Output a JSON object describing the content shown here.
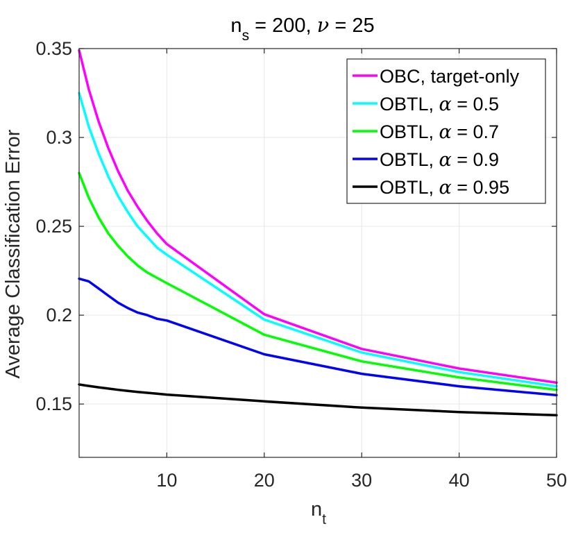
{
  "chart_data": {
    "type": "line",
    "title": {
      "ns_var": "n",
      "ns_sub": "s",
      "ns_rest": " = 200, ",
      "nu_sym": "ν",
      "nu_rest": " = 25"
    },
    "xlabel": {
      "main": "n",
      "sub": "t"
    },
    "ylabel": "Average Classification Error",
    "xlim": [
      1,
      50
    ],
    "ylim": [
      0.12,
      0.35
    ],
    "xticks": [
      10,
      20,
      30,
      40,
      50
    ],
    "xtick_labels": [
      "10",
      "20",
      "30",
      "40",
      "50"
    ],
    "yticks": [
      0.15,
      0.2,
      0.25,
      0.3,
      0.35
    ],
    "ytick_labels": [
      "0.15",
      "0.2",
      "0.25",
      "0.3",
      "0.35"
    ],
    "grid": true,
    "legend_position": "top-right",
    "x": [
      1,
      2,
      3,
      4,
      5,
      6,
      7,
      8,
      9,
      10,
      20,
      30,
      40,
      50
    ],
    "series": [
      {
        "name": "OBC, target-only",
        "legend_label": "OBC, target-only",
        "alpha_text": "",
        "color": "#ff00ff",
        "values": [
          0.349,
          0.327,
          0.309,
          0.294,
          0.281,
          0.27,
          0.261,
          0.253,
          0.246,
          0.24,
          0.2005,
          0.181,
          0.17,
          0.162
        ]
      },
      {
        "name": "OBTL, alpha = 0.5",
        "legend_label": "OBTL, ",
        "alpha_text": " = 0.5",
        "color": "#00ffff",
        "values": [
          0.325,
          0.306,
          0.291,
          0.278,
          0.267,
          0.258,
          0.25,
          0.244,
          0.238,
          0.234,
          0.1975,
          0.179,
          0.168,
          0.16
        ]
      },
      {
        "name": "OBTL, alpha = 0.7",
        "legend_label": "OBTL, ",
        "alpha_text": " = 0.7",
        "color": "#00ff00",
        "values": [
          0.28,
          0.266,
          0.255,
          0.246,
          0.239,
          0.233,
          0.228,
          0.224,
          0.221,
          0.218,
          0.189,
          0.174,
          0.165,
          0.158
        ]
      },
      {
        "name": "OBTL, alpha = 0.9",
        "legend_label": "OBTL, ",
        "alpha_text": " = 0.9",
        "color": "#0000ff",
        "values": [
          0.2205,
          0.219,
          0.215,
          0.211,
          0.207,
          0.204,
          0.2015,
          0.2,
          0.198,
          0.197,
          0.178,
          0.167,
          0.16,
          0.155
        ]
      },
      {
        "name": "OBTL, alpha = 0.95",
        "legend_label": "OBTL, ",
        "alpha_text": " = 0.95",
        "color": "#000000",
        "values": [
          0.161,
          0.1602,
          0.1594,
          0.1587,
          0.158,
          0.1574,
          0.1568,
          0.1563,
          0.1558,
          0.1553,
          0.1515,
          0.148,
          0.1455,
          0.1437
        ]
      }
    ]
  }
}
